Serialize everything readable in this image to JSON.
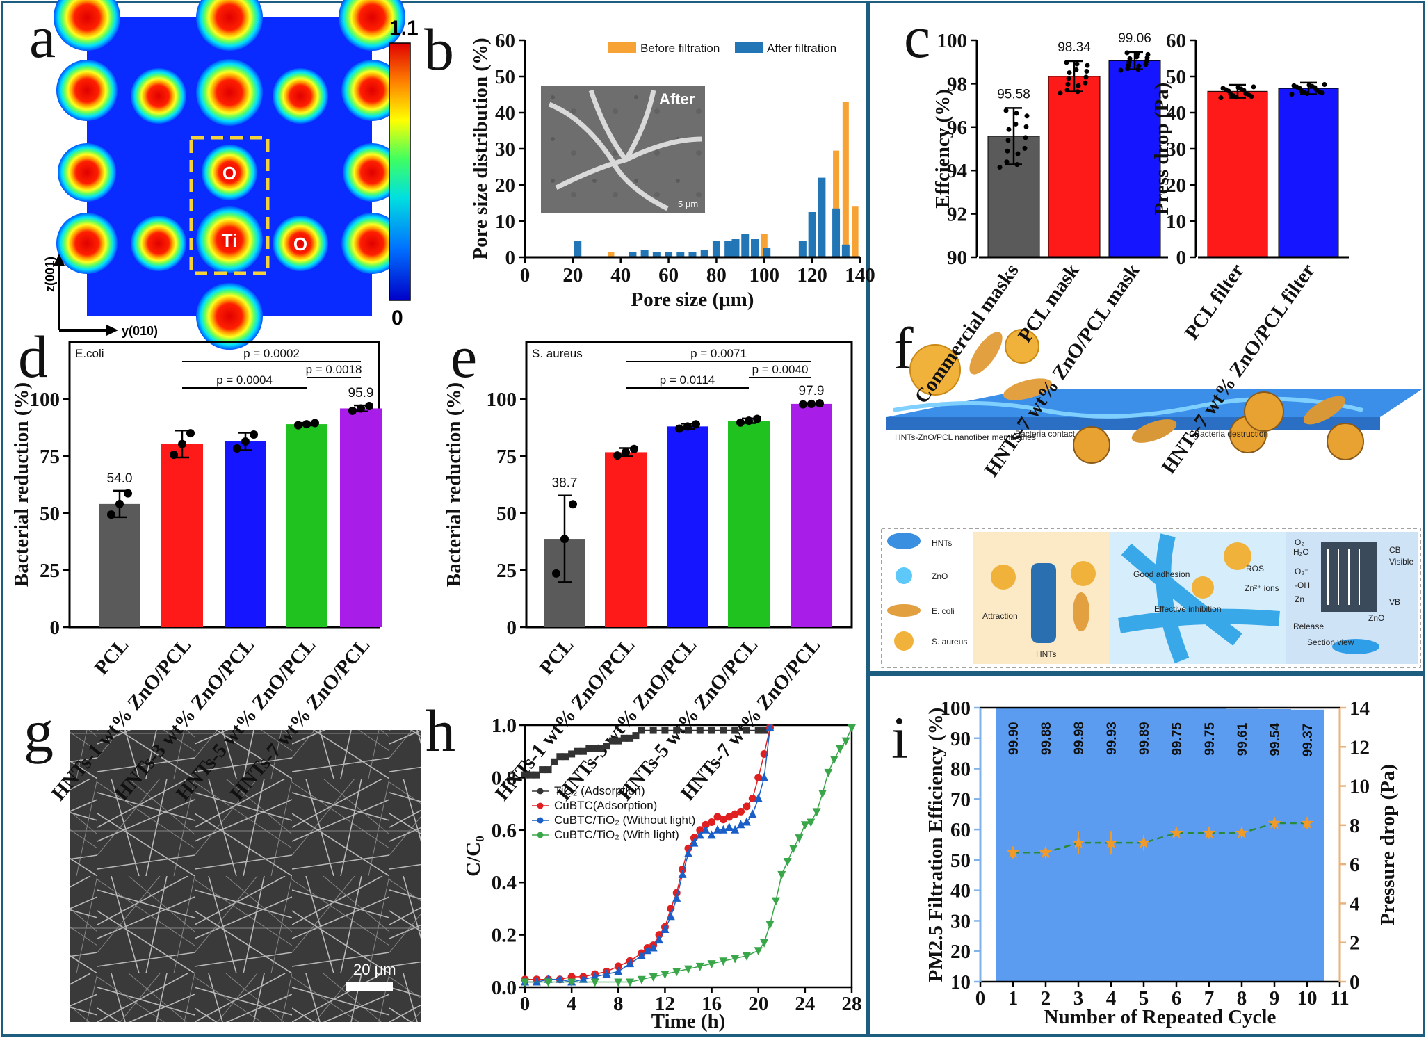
{
  "panel_labels": {
    "a": "a",
    "b": "b",
    "c": "c",
    "d": "d",
    "e": "e",
    "f": "f",
    "g": "g",
    "h": "h",
    "i": "i"
  },
  "colors": {
    "frame": "#1d5d7f",
    "orange": "#f7a234",
    "blue": "#2376b5",
    "gray": "#5a5a5a",
    "red": "#ff1a1a",
    "navy": "#1515ff",
    "green": "#1fc21f",
    "purple": "#a81ee8",
    "pm_blue": "#5b9cf0",
    "pm_orange": "#f09a2a",
    "pm_axis_blue": "#7fb2ea",
    "pm_axis_orange": "#e8b27a",
    "h_black": "#333333",
    "h_red": "#e02020",
    "h_blue": "#1a5fc8",
    "h_green": "#3aa64a"
  },
  "panel_a": {
    "y_axis": "z(001)",
    "x_axis": "y(010)",
    "colorbar_max": "1.1",
    "colorbar_min": "0",
    "atom_labels": [
      "O",
      "Ti",
      "O"
    ]
  },
  "panel_b": {
    "inset_label": "After",
    "scale_bar": "5 μm"
  },
  "panel_g": {
    "scale_bar": "20 μm"
  },
  "panel_f": {
    "labels": {
      "membrane": "HNTs-ZnO/PCL nanofiber membranes",
      "contact": "Bacteria contact",
      "destruction": "Bacteria destruction",
      "good_adhesion": "Good adhesion",
      "effective_inhibition": "Effective inhibition",
      "attraction": "Attraction",
      "hnts_center": "HNTs",
      "ros": "ROS",
      "zn_ions": "Zn²⁺ ions",
      "release": "Release",
      "section_view": "Section view",
      "cb": "CB",
      "vb": "VB",
      "visible": "Visible",
      "zno": "ZnO",
      "o2": "O₂",
      "h2o": "H₂O",
      "o2r": "O₂⁻",
      "oh": "·OH",
      "zn": "Zn"
    },
    "legend": [
      "HNTs",
      "ZnO",
      "E. coli",
      "S. aureus"
    ]
  },
  "chart_data": [
    {
      "id": "b",
      "type": "bar",
      "title": "",
      "xlabel": "Pore size (μm)",
      "ylabel": "Pore size distribution (%)",
      "xlim": [
        0,
        140
      ],
      "ylim": [
        0,
        60
      ],
      "xticks": [
        0,
        20,
        40,
        60,
        80,
        100,
        120,
        140
      ],
      "yticks": [
        0,
        10,
        20,
        30,
        40,
        50,
        60
      ],
      "legend_position": "top-right",
      "series": [
        {
          "name": "Before filtration",
          "color": "#f7a234",
          "x": [
            36,
            100,
            130,
            134,
            138
          ],
          "values": [
            1.5,
            6.5,
            29.5,
            43,
            14
          ]
        },
        {
          "name": "After filtration",
          "color": "#2376b5",
          "x": [
            22,
            45,
            50,
            55,
            60,
            65,
            70,
            75,
            80,
            85,
            88,
            92,
            96,
            101,
            116,
            120,
            124,
            130,
            134
          ],
          "values": [
            4.5,
            1.5,
            2,
            1.5,
            1.5,
            1.5,
            1.5,
            2,
            4.5,
            4.5,
            5,
            6.5,
            5,
            2.5,
            4.5,
            12.5,
            22,
            13.5,
            3.5
          ]
        }
      ]
    },
    {
      "id": "c1",
      "type": "bar",
      "title": "",
      "xlabel": "",
      "ylabel": "Effciency (%)",
      "ylim": [
        90,
        100
      ],
      "yticks": [
        90,
        92,
        94,
        96,
        98,
        100
      ],
      "categories": [
        "Commercial masks",
        "PCL mask",
        "HNTs-7 wt% ZnO/PCL mask"
      ],
      "values": [
        95.58,
        98.34,
        99.06
      ],
      "data_labels": [
        "95.58",
        "98.34",
        "99.06"
      ],
      "errors": [
        1.3,
        0.7,
        0.4
      ],
      "colors": [
        "#5a5a5a",
        "#ff1a1a",
        "#1515ff"
      ]
    },
    {
      "id": "c2",
      "type": "bar",
      "title": "",
      "xlabel": "",
      "ylabel": "Press drop (Pa)",
      "ylim": [
        0,
        60
      ],
      "yticks": [
        0,
        10,
        20,
        30,
        40,
        50,
        60
      ],
      "categories": [
        "PCL filter",
        "HNTs-7 wt% ZnO/PCL filter"
      ],
      "values": [
        45.9,
        46.7
      ],
      "errors": [
        1.8,
        1.6
      ],
      "colors": [
        "#ff1a1a",
        "#1515ff"
      ]
    },
    {
      "id": "d",
      "type": "bar",
      "title": "E.coli",
      "xlabel": "",
      "ylabel": "Bacterial reduction (%)",
      "ylim": [
        0,
        125
      ],
      "yticks": [
        0,
        25,
        50,
        75,
        100
      ],
      "categories": [
        "PCL",
        "HNTs-1 wt% ZnO/PCL",
        "HNTs-3 wt% ZnO/PCL",
        "HNTs-5 wt% ZnO/PCL",
        "HNTs-7 wt% ZnO/PCL"
      ],
      "values": [
        54.0,
        80.3,
        81.4,
        89.0,
        95.9
      ],
      "errors": [
        5.8,
        5.9,
        3.8,
        0.6,
        1.3
      ],
      "data_labels": [
        "54.0",
        "",
        "",
        "",
        "95.9"
      ],
      "colors": [
        "#5a5a5a",
        "#ff1a1a",
        "#1515ff",
        "#1fc21f",
        "#a81ee8"
      ],
      "significance": [
        {
          "from": 1,
          "to": 4,
          "label": "p = 0.0002"
        },
        {
          "from": 1,
          "to": 3,
          "label": "p = 0.0004"
        },
        {
          "from": 3,
          "to": 4,
          "label": "p = 0.0018"
        }
      ]
    },
    {
      "id": "e",
      "type": "bar",
      "title": "S. aureus",
      "xlabel": "",
      "ylabel": "Bacterial reduction (%)",
      "ylim": [
        0,
        125
      ],
      "yticks": [
        0,
        25,
        50,
        75,
        100
      ],
      "categories": [
        "PCL",
        "HNTs-1 wt% ZnO/PCL",
        "HNTs-3 wt% ZnO/PCL",
        "HNTs-5 wt% ZnO/PCL",
        "HNTs-7 wt% ZnO/PCL"
      ],
      "values": [
        38.7,
        76.7,
        88.0,
        90.5,
        97.9
      ],
      "errors": [
        19.0,
        1.8,
        1.2,
        1.0,
        0.3
      ],
      "data_labels": [
        "38.7",
        "",
        "",
        "",
        "97.9"
      ],
      "colors": [
        "#5a5a5a",
        "#ff1a1a",
        "#1515ff",
        "#1fc21f",
        "#a81ee8"
      ],
      "significance": [
        {
          "from": 1,
          "to": 4,
          "label": "p = 0.0071"
        },
        {
          "from": 1,
          "to": 3,
          "label": "p = 0.0114"
        },
        {
          "from": 3,
          "to": 4,
          "label": "p = 0.0040"
        }
      ]
    },
    {
      "id": "h",
      "type": "line",
      "title": "",
      "xlabel": "Time (h)",
      "ylabel": "C/C₀",
      "xlim": [
        0,
        28
      ],
      "ylim": [
        0,
        1.0
      ],
      "xticks": [
        0,
        4,
        8,
        12,
        16,
        20,
        24,
        28
      ],
      "yticks": [
        0.0,
        0.2,
        0.4,
        0.6,
        0.8,
        1.0
      ],
      "legend_position": "top-left",
      "series": [
        {
          "name": "TiO₂ (Adsorption)",
          "marker": "square",
          "color": "#333333",
          "x": [
            0,
            0.5,
            1,
            1.5,
            2,
            2.5,
            3,
            3.5,
            4,
            4.5,
            5,
            5.5,
            6,
            6.5,
            7,
            7.5,
            8,
            8.5,
            9,
            9.5,
            10,
            11,
            12,
            13,
            14,
            15,
            16,
            17,
            18,
            19,
            20,
            20.5,
            21
          ],
          "y": [
            0.81,
            0.81,
            0.81,
            0.83,
            0.83,
            0.86,
            0.88,
            0.88,
            0.89,
            0.9,
            0.9,
            0.91,
            0.91,
            0.91,
            0.92,
            0.94,
            0.94,
            0.95,
            0.95,
            0.96,
            0.98,
            0.98,
            0.98,
            0.98,
            0.98,
            0.98,
            0.98,
            0.98,
            0.98,
            0.98,
            0.98,
            0.98,
            0.99
          ]
        },
        {
          "name": "CuBTC(Adsorption)",
          "marker": "circle",
          "color": "#e02020",
          "x": [
            0,
            1,
            2,
            3,
            4,
            5,
            6,
            7,
            8,
            9,
            10,
            10.5,
            11,
            11.5,
            12,
            12.5,
            13,
            13.5,
            14,
            14.5,
            15,
            15.5,
            16,
            16.5,
            17,
            17.5,
            18,
            18.5,
            19,
            19.5,
            20,
            20.5,
            21
          ],
          "y": [
            0.03,
            0.03,
            0.03,
            0.03,
            0.04,
            0.04,
            0.05,
            0.06,
            0.08,
            0.1,
            0.13,
            0.15,
            0.16,
            0.2,
            0.23,
            0.3,
            0.36,
            0.45,
            0.53,
            0.57,
            0.6,
            0.62,
            0.63,
            0.65,
            0.64,
            0.65,
            0.66,
            0.67,
            0.69,
            0.72,
            0.8,
            0.89,
            0.99
          ]
        },
        {
          "name": "CuBTC/TiO₂ (Without light)",
          "marker": "triangle",
          "color": "#1a5fc8",
          "x": [
            0,
            1,
            2,
            3,
            4,
            5,
            6,
            7,
            8,
            9,
            10,
            10.5,
            11,
            11.5,
            12,
            12.5,
            13,
            13.5,
            14,
            14.5,
            15,
            15.5,
            16,
            16.5,
            17,
            17.5,
            18,
            18.5,
            19,
            19.5,
            20,
            20.5,
            21
          ],
          "y": [
            0.02,
            0.02,
            0.03,
            0.03,
            0.02,
            0.03,
            0.04,
            0.05,
            0.06,
            0.09,
            0.12,
            0.14,
            0.15,
            0.18,
            0.22,
            0.27,
            0.34,
            0.43,
            0.51,
            0.55,
            0.58,
            0.6,
            0.58,
            0.6,
            0.6,
            0.61,
            0.6,
            0.62,
            0.63,
            0.66,
            0.72,
            0.8,
            0.99
          ]
        },
        {
          "name": "CuBTC/TiO₂ (With light)",
          "marker": "down-triangle",
          "color": "#3aa64a",
          "x": [
            0,
            2,
            4,
            6,
            8,
            9,
            10,
            11,
            12,
            13,
            14,
            15,
            16,
            17,
            18,
            19,
            20,
            20.5,
            21,
            21.5,
            22,
            22.5,
            23,
            23.5,
            24,
            24.5,
            25,
            25.5,
            26,
            26.5,
            27,
            27.5,
            28
          ],
          "y": [
            0.02,
            0.02,
            0.02,
            0.02,
            0.02,
            0.02,
            0.03,
            0.04,
            0.05,
            0.06,
            0.07,
            0.08,
            0.09,
            0.1,
            0.11,
            0.12,
            0.14,
            0.17,
            0.24,
            0.33,
            0.43,
            0.48,
            0.53,
            0.57,
            0.62,
            0.63,
            0.67,
            0.74,
            0.82,
            0.87,
            0.91,
            0.94,
            0.99
          ]
        }
      ]
    },
    {
      "id": "i",
      "type": "bar",
      "title": "",
      "xlabel": "Number of Repeated Cycle",
      "ylabel": "PM2.5 Filtration Efficiency (%)",
      "y2label": "Pressure drop (Pa)",
      "xlim": [
        0,
        11
      ],
      "ylim": [
        10,
        100
      ],
      "y2lim": [
        0,
        14
      ],
      "xticks": [
        0,
        1,
        2,
        3,
        4,
        5,
        6,
        7,
        8,
        9,
        10,
        11
      ],
      "yticks": [
        10,
        20,
        30,
        40,
        50,
        60,
        70,
        80,
        90,
        100
      ],
      "y2ticks": [
        0,
        2,
        4,
        6,
        8,
        10,
        12,
        14
      ],
      "categories": [
        1,
        2,
        3,
        4,
        5,
        6,
        7,
        8,
        9,
        10
      ],
      "values": [
        99.9,
        99.88,
        99.98,
        99.93,
        99.89,
        99.75,
        99.75,
        99.61,
        99.54,
        99.37
      ],
      "data_labels": [
        "99.90",
        "99.88",
        "99.98",
        "99.93",
        "99.89",
        "99.75",
        "99.75",
        "99.61",
        "99.54",
        "99.37"
      ],
      "pressure_drop": [
        6.6,
        6.6,
        7.1,
        7.1,
        7.1,
        7.6,
        7.6,
        7.6,
        8.1,
        8.1
      ],
      "pressure_error": [
        0.3,
        0.3,
        0.6,
        0.6,
        0.4,
        0.1,
        0.3,
        0.3,
        0.3,
        0.3
      ]
    }
  ]
}
